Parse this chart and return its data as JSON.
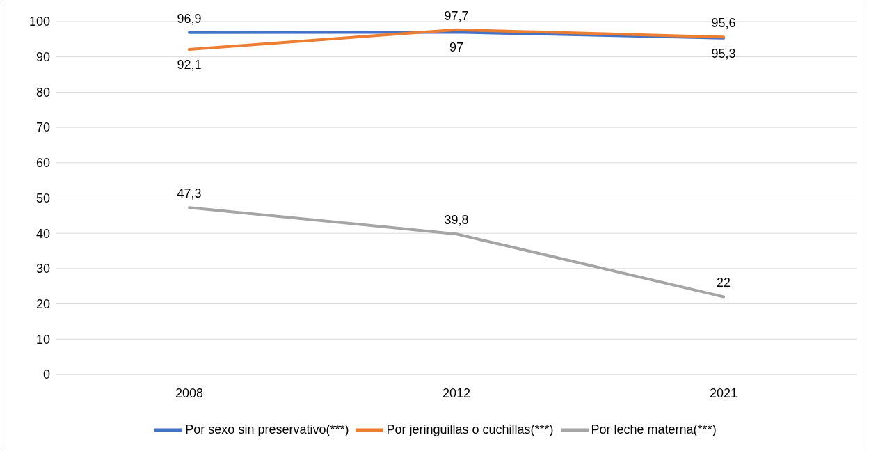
{
  "chart_data": {
    "type": "line",
    "categories": [
      "2008",
      "2012",
      "2021"
    ],
    "series": [
      {
        "name": "Por sexo sin preservativo(***)",
        "color": "#4472c4",
        "values": [
          96.9,
          97,
          95.3
        ],
        "value_labels": [
          "96,9",
          "97",
          "95,3"
        ]
      },
      {
        "name": "Por jeringuillas o cuchillas(***)",
        "color": "#ed7d31",
        "values": [
          92.1,
          97.7,
          95.6
        ],
        "value_labels": [
          "92,1",
          "97,7",
          "95,6"
        ]
      },
      {
        "name": "Por leche materna(***)",
        "color": "#a5a5a5",
        "values": [
          47.3,
          39.8,
          22
        ],
        "value_labels": [
          "47,3",
          "39,8",
          "22"
        ]
      }
    ],
    "ylim": [
      0,
      100
    ],
    "yticks": [
      0,
      10,
      20,
      30,
      40,
      50,
      60,
      70,
      80,
      90,
      100
    ],
    "grid": "y",
    "legend": "bottom",
    "marker": "none",
    "line_style": "solid"
  }
}
